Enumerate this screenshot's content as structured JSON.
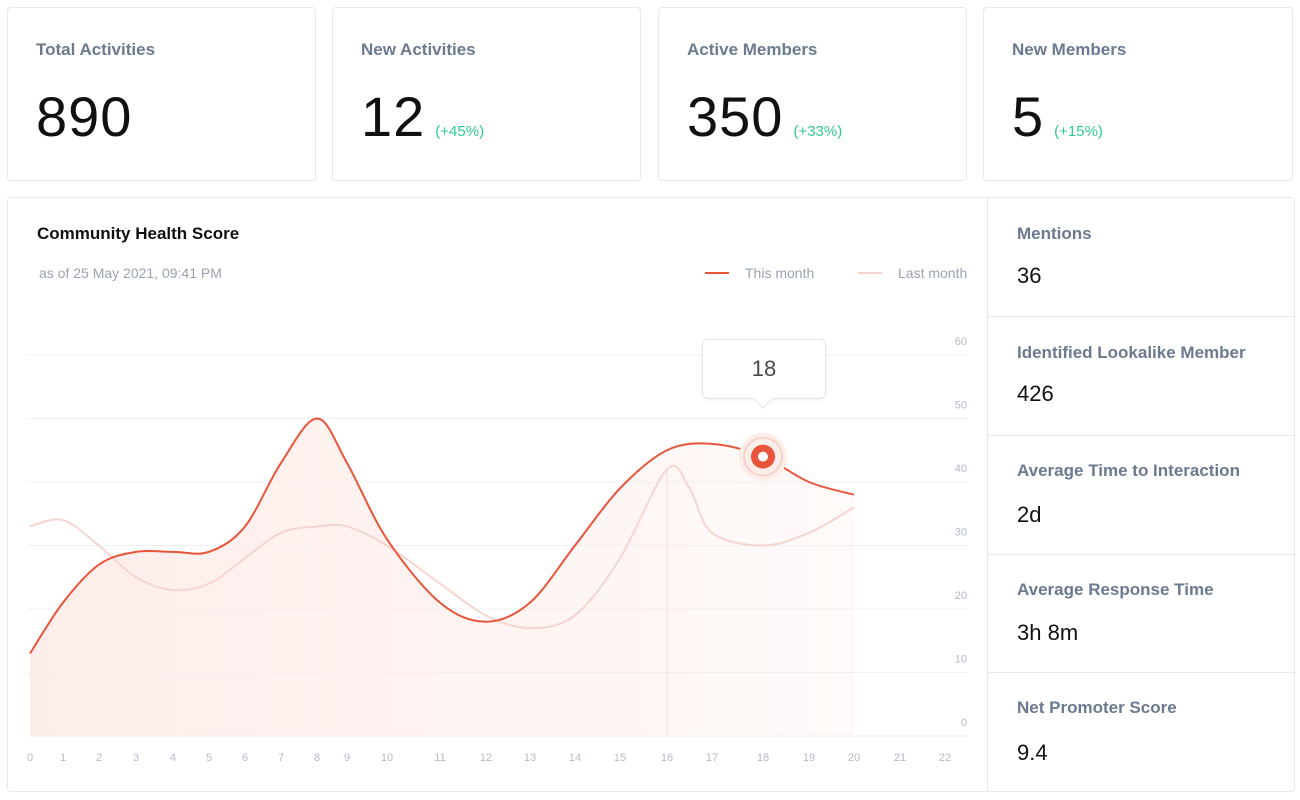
{
  "stats": [
    {
      "title": "Total Activities",
      "value": "890",
      "delta": ""
    },
    {
      "title": "New Activities",
      "value": "12",
      "delta": "(+45%)"
    },
    {
      "title": "Active Members",
      "value": "350",
      "delta": "(+33%)"
    },
    {
      "title": "New Members",
      "value": "5",
      "delta": "(+15%)"
    }
  ],
  "colors": {
    "delta_positive": "#2ecc8f",
    "this_month": "#e8553a",
    "last_month": "#f5d5d0",
    "area_fill": "#fdebe7",
    "grid": "#eef0f3"
  },
  "chart": {
    "title": "Community Health Score",
    "subtitle": "as of 25 May 2021, 09:41 PM",
    "legend": {
      "this_month": "This month",
      "last_month": "Last month"
    },
    "tooltip": "18"
  },
  "chart_data": {
    "type": "line",
    "title": "Community Health Score",
    "y_axis_side": "right",
    "ylim": [
      0,
      60
    ],
    "yticks": [
      0,
      10,
      20,
      30,
      40,
      50,
      60
    ],
    "xticks": [
      0,
      1,
      2,
      3,
      4,
      5,
      6,
      7,
      8,
      9,
      10,
      11,
      12,
      13,
      14,
      15,
      16,
      17,
      18,
      19,
      20,
      21,
      22
    ],
    "grid": true,
    "legend_position": "top-right",
    "series": [
      {
        "name": "This month",
        "x": [
          0,
          1,
          2,
          3,
          4,
          5,
          6,
          7,
          8,
          9,
          10,
          11,
          12,
          13,
          14,
          15,
          16,
          17,
          18,
          19,
          20
        ],
        "y": [
          13,
          21,
          27,
          29,
          29,
          29,
          33,
          43,
          50,
          43,
          31,
          21,
          18,
          21,
          30,
          39,
          45,
          46,
          44,
          40,
          38
        ]
      },
      {
        "name": "Last month",
        "x": [
          0,
          1,
          2,
          3,
          4,
          5,
          6,
          7,
          8,
          9,
          10,
          11,
          12,
          13,
          14,
          15,
          16,
          16.5,
          17,
          18,
          19,
          20
        ],
        "y": [
          33,
          34,
          30,
          25,
          23,
          24,
          28,
          32,
          33,
          33,
          30,
          24,
          19,
          17,
          19,
          28,
          42,
          39,
          32,
          30,
          32,
          36
        ]
      }
    ],
    "highlight": {
      "series": "This month",
      "x": 18,
      "y": 44,
      "label": "18"
    }
  },
  "metrics": [
    {
      "label": "Mentions",
      "value": "36"
    },
    {
      "label": "Identified Lookalike Member",
      "value": "426"
    },
    {
      "label": "Average Time to Interaction",
      "value": "2d"
    },
    {
      "label": "Average Response Time",
      "value": "3h 8m"
    },
    {
      "label": "Net Promoter Score",
      "value": "9.4"
    }
  ]
}
